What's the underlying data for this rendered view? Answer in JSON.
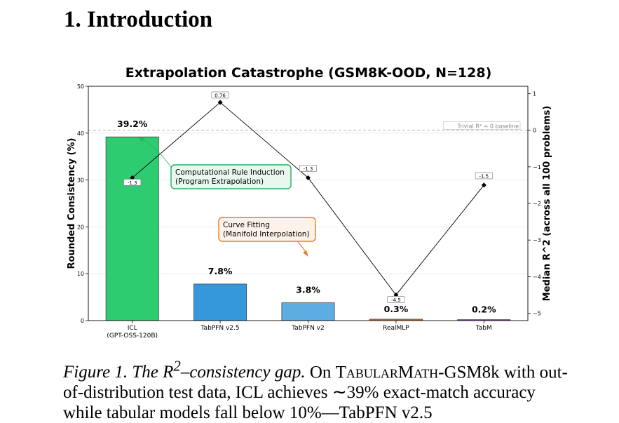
{
  "section": {
    "number": "1.",
    "title": "Introduction"
  },
  "chart_data": {
    "type": "bar",
    "title": "Extrapolation Catastrophe (GSM8K-OOD, N=128)",
    "ylabel": "Rounded Consistency (%)",
    "y2label": "Median R^2 (across all 100 problems)",
    "ylim": [
      0,
      50
    ],
    "y2lim": [
      -5.2,
      1.2
    ],
    "yticks": [
      0,
      10,
      20,
      30,
      40,
      50
    ],
    "y2ticks": [
      -5,
      -4,
      -3,
      -2,
      -1,
      0,
      1
    ],
    "categories": [
      "ICL\n(GPT-OSS-120B)",
      "TabPFN v2.5",
      "TabPFN v2",
      "RealMLP",
      "TabM"
    ],
    "values": [
      39.2,
      7.8,
      3.8,
      0.3,
      0.2
    ],
    "value_labels": [
      "39.2%",
      "7.8%",
      "3.8%",
      "0.3%",
      "0.2%"
    ],
    "bar_colors": [
      "#2ecc71",
      "#3498db",
      "#5dade2",
      "#e67e22",
      "#8e44ad"
    ],
    "line_series": {
      "values": [
        -1.3,
        0.76,
        -1.3,
        -4.5,
        -1.5
      ],
      "labels": [
        "-1.3",
        "0.76",
        "-1.3",
        "-4.5",
        "-1.5"
      ]
    },
    "baseline": {
      "value": 0,
      "label": "Trivial R² = 0 baseline"
    },
    "annotations": [
      {
        "text": [
          "Computational Rule Induction",
          "(Program Extrapolation)"
        ],
        "color": "#27ae60",
        "fill": "#e9f7ef"
      },
      {
        "text": [
          "Curve Fitting",
          "(Manifold Interpolation)"
        ],
        "color": "#e67e22",
        "fill": "#fdf2e9"
      }
    ],
    "grid": true
  },
  "caption": {
    "label_prefix": "Figure 1. The ",
    "label_var": "R",
    "label_sup": "2",
    "label_suffix": "–consistency gap.",
    "text_on": " On ",
    "benchmark": "TabularMath",
    "text_line": "-GSM8k with out-of-distribution test data, ICL achieves ∼39% exact-match",
    "text_cut": "accuracy while tabular models fall below 10%—TabPFN v2.5"
  }
}
